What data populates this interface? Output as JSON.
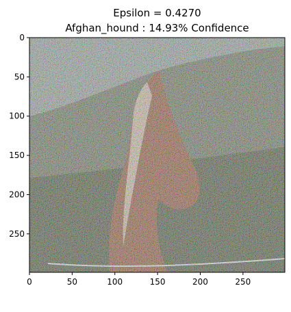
{
  "chart_data": {
    "type": "image",
    "title_lines": [
      "Epsilon = 0.4270",
      "Afghan_hound : 14.93% Confidence"
    ],
    "xlim": [
      0,
      299
    ],
    "ylim": [
      299,
      0
    ],
    "x_ticks": [
      0,
      50,
      100,
      150,
      200,
      250
    ],
    "y_ticks": [
      0,
      50,
      100,
      150,
      200,
      250
    ],
    "grid": false,
    "image_subject": "horse-with-adversarial-noise",
    "colors": {
      "sky": "#8a9a92",
      "hill": "#5f6a50",
      "field": "#3d4a2c",
      "horse": "#8a4a2a",
      "mane": "#c9b79a",
      "frame": "#000000"
    }
  }
}
